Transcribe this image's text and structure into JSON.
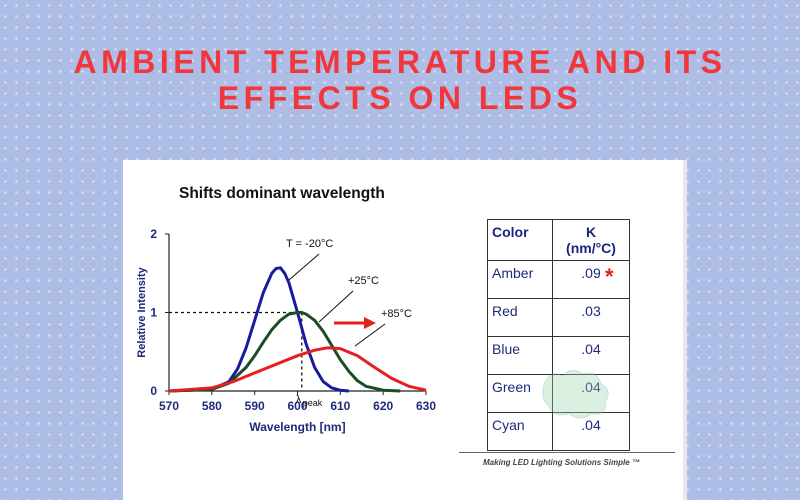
{
  "page": {
    "headline": "AMBIENT TEMPERATURE AND ITS EFFECTS ON LEDS",
    "footer": "Making LED Lighting Solutions Simple ™",
    "colors": {
      "background": "#aebde6",
      "headline": "#f0373c",
      "table_text": "#1f2a7a"
    }
  },
  "chart_data": {
    "type": "line",
    "title": "Shifts dominant wavelength",
    "xlabel": "Wavelength [nm]",
    "ylabel": "Relative Intensity",
    "xlim": [
      570,
      630
    ],
    "ylim": [
      0,
      2
    ],
    "xticks": [
      "570",
      "580",
      "590",
      "600",
      "610",
      "620",
      "630"
    ],
    "yticks": [
      "0",
      "1",
      "2"
    ],
    "peak_label": "λpeak",
    "series": [
      {
        "name": "Tamb = -20°C",
        "color": "#1a1aa0",
        "x": [
          570,
          580,
          584,
          586,
          588,
          590,
          592,
          594,
          595,
          596,
          597,
          598,
          600,
          602,
          604,
          606,
          608,
          610,
          612
        ],
        "y": [
          0,
          0.02,
          0.12,
          0.28,
          0.55,
          0.9,
          1.25,
          1.5,
          1.56,
          1.57,
          1.5,
          1.38,
          1.0,
          0.6,
          0.3,
          0.12,
          0.04,
          0.01,
          0
        ]
      },
      {
        "name": "+25°C",
        "color": "#1b4d25",
        "x": [
          570,
          580,
          584,
          588,
          590,
          592,
          594,
          596,
          598,
          600,
          601,
          602,
          604,
          606,
          608,
          610,
          612,
          614,
          616,
          620,
          624
        ],
        "y": [
          0,
          0.02,
          0.1,
          0.3,
          0.45,
          0.62,
          0.78,
          0.9,
          0.98,
          1.0,
          1.0,
          0.98,
          0.9,
          0.76,
          0.58,
          0.4,
          0.25,
          0.13,
          0.06,
          0.01,
          0
        ]
      },
      {
        "name": "+85°C",
        "color": "#e52020",
        "x": [
          570,
          580,
          585,
          590,
          595,
          600,
          604,
          607,
          610,
          614,
          618,
          622,
          626,
          630
        ],
        "y": [
          0,
          0.04,
          0.12,
          0.23,
          0.34,
          0.45,
          0.52,
          0.55,
          0.54,
          0.45,
          0.3,
          0.16,
          0.06,
          0.01
        ]
      }
    ]
  },
  "table": {
    "headers": [
      "Color",
      "K\n(nm/°C)"
    ],
    "header_k": "K",
    "header_unit": "(nm/°C)",
    "rows": [
      {
        "color": "Amber",
        "k": ".09"
      },
      {
        "color": "Red",
        "k": ".03"
      },
      {
        "color": "Blue",
        "k": ".04"
      },
      {
        "color": "Green",
        "k": ".04"
      },
      {
        "color": "Cyan",
        "k": ".04"
      }
    ],
    "note_marker": "*"
  }
}
